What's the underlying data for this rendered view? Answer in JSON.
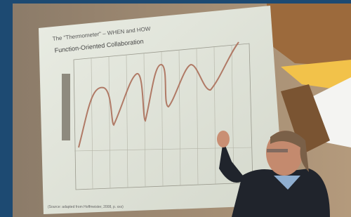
{
  "slide": {
    "title": "The \"Thermometer\" – WHEN and HOW",
    "subtitle": "Function-Oriented Collaboration",
    "source": "(Source: adapted from Hoffmeister, 2008, p. xxx)"
  }
}
